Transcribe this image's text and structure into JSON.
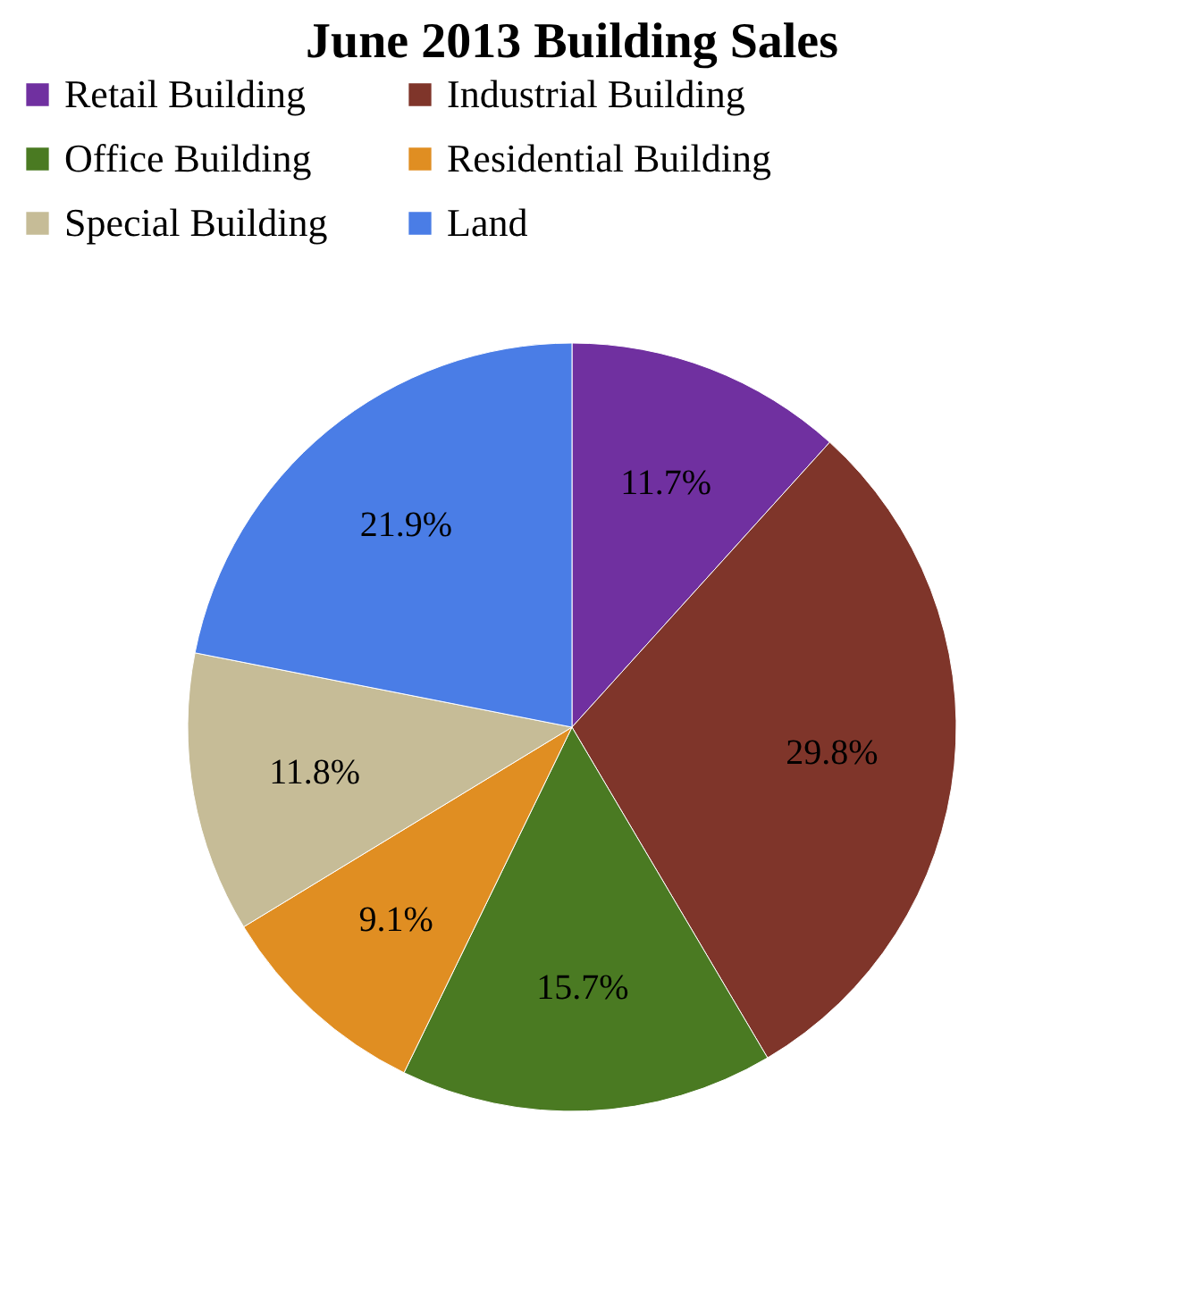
{
  "chart_data": {
    "type": "pie",
    "title": "June 2013 Building Sales",
    "categories": [
      "Retail Building",
      "Industrial Building",
      "Office Building",
      "Residential Building",
      "Special Building",
      "Land"
    ],
    "values": [
      11.7,
      29.8,
      15.7,
      9.1,
      11.8,
      21.9
    ],
    "colors": [
      "#7030a0",
      "#7f352a",
      "#4a7a22",
      "#e08e22",
      "#c6bc97",
      "#4a7de6"
    ],
    "value_labels": [
      "11.7%",
      "29.8%",
      "15.7%",
      "9.1%",
      "11.8%",
      "21.9%"
    ],
    "legend": "top"
  }
}
